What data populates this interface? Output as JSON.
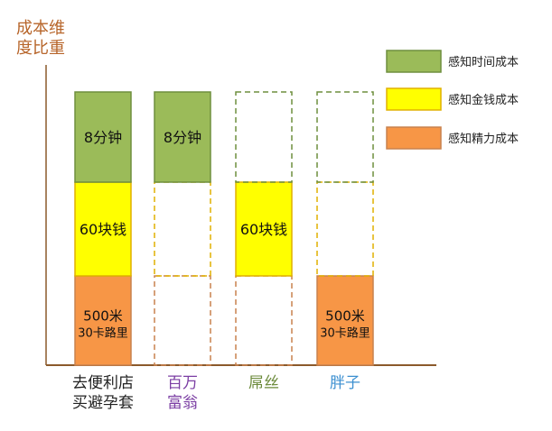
{
  "chart_data": {
    "type": "bar",
    "stacked": true,
    "y_title_lines": [
      "成本维",
      "度比重"
    ],
    "categories": [
      {
        "lines": [
          "去便利店",
          "买避孕套"
        ],
        "color": "#222222"
      },
      {
        "lines": [
          "百万",
          "富翁"
        ],
        "color": "#7b3ea3"
      },
      {
        "lines": [
          "屌丝"
        ],
        "color": "#6b8a3a"
      },
      {
        "lines": [
          "胖子"
        ],
        "color": "#3b8fd0"
      }
    ],
    "series": [
      {
        "name": "感知精力成本",
        "color": "#f79646",
        "stroke": "#c9824f",
        "present": [
          true,
          false,
          false,
          true
        ],
        "labels": [
          [
            "500米",
            "30卡路里"
          ],
          [],
          [],
          [
            "500米",
            "30卡路里"
          ]
        ]
      },
      {
        "name": "感知金钱成本",
        "color": "#ffff00",
        "stroke": "#e0b000",
        "present": [
          true,
          false,
          true,
          false
        ],
        "labels": [
          [
            "60块钱"
          ],
          [],
          [
            "60块钱"
          ],
          []
        ]
      },
      {
        "name": "感知时间成本",
        "color": "#9bbb59",
        "stroke": "#6f8f3f",
        "present": [
          true,
          true,
          false,
          false
        ],
        "labels": [
          [
            "8分钟"
          ],
          [
            "8分钟"
          ],
          [],
          []
        ]
      }
    ],
    "legend_order": [
      "感知时间成本",
      "感知金钱成本",
      "感知精力成本"
    ],
    "legend_position": "top-right",
    "axis_color": "#8b5a2b"
  }
}
